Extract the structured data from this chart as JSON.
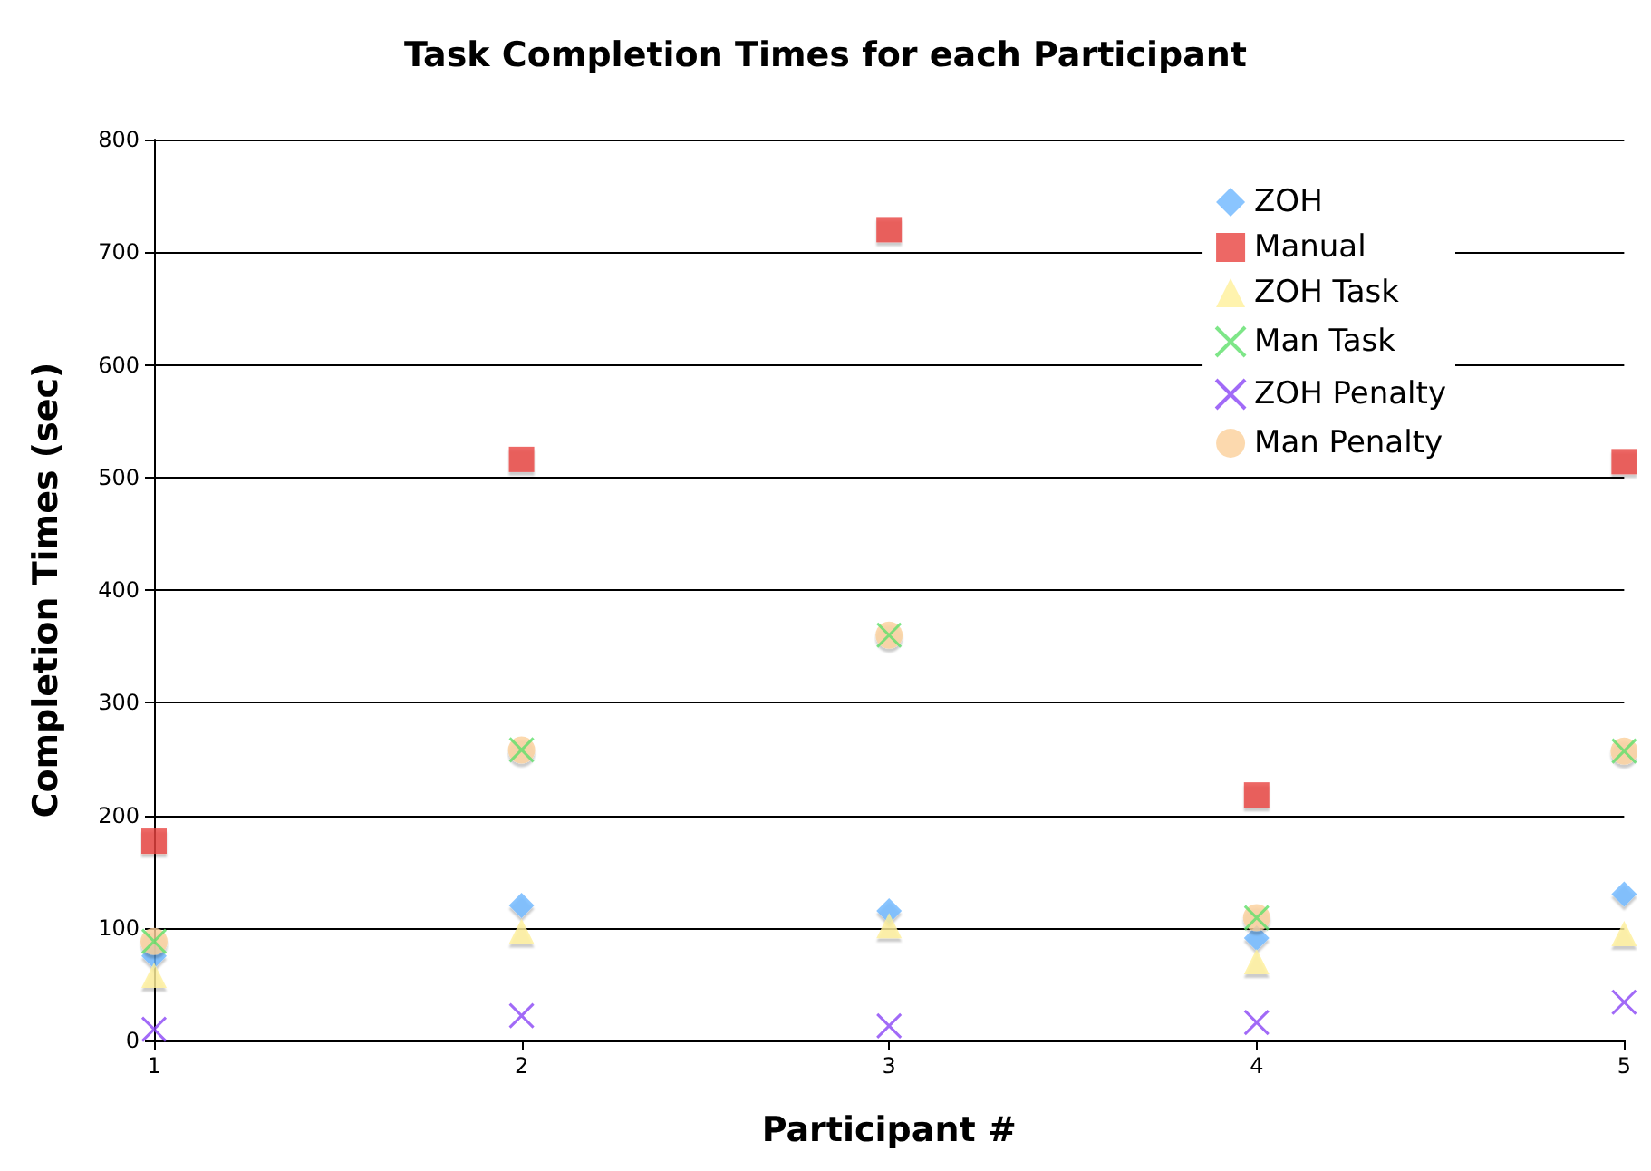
{
  "chart_data": {
    "type": "scatter",
    "title": "Task Completion Times for each Participant",
    "xlabel": "Participant #",
    "ylabel": "Completion Times (sec)",
    "x": [
      1,
      2,
      3,
      4,
      5
    ],
    "series": [
      {
        "name": "ZOH",
        "color": "#6db6ff",
        "marker": "diamond",
        "values": [
          75,
          120,
          115,
          91,
          130
        ]
      },
      {
        "name": "Manual",
        "color": "#e8423f",
        "marker": "square",
        "values": [
          177,
          516,
          720,
          218,
          514
        ]
      },
      {
        "name": "ZOH Task",
        "color": "#fff09a",
        "marker": "triangle",
        "values": [
          58,
          97,
          102,
          70,
          95
        ]
      },
      {
        "name": "Man Task",
        "color": "#5ee06a",
        "marker": "cross",
        "values": [
          88,
          258,
          360,
          109,
          257
        ]
      },
      {
        "name": "ZOH Penalty",
        "color": "#8a45f5",
        "marker": "cross",
        "values": [
          10,
          22,
          13,
          16,
          34
        ]
      },
      {
        "name": "Man Penalty",
        "color": "#fbd09a",
        "marker": "circle",
        "values": [
          88,
          258,
          360,
          109,
          257
        ]
      }
    ],
    "xlim": [
      1,
      5
    ],
    "xticks": [
      1,
      2,
      3,
      4,
      5
    ],
    "ylim": [
      0,
      800
    ],
    "yticks": [
      0,
      100,
      200,
      300,
      400,
      500,
      600,
      700,
      800
    ],
    "grid": "y",
    "legend": "top right"
  }
}
